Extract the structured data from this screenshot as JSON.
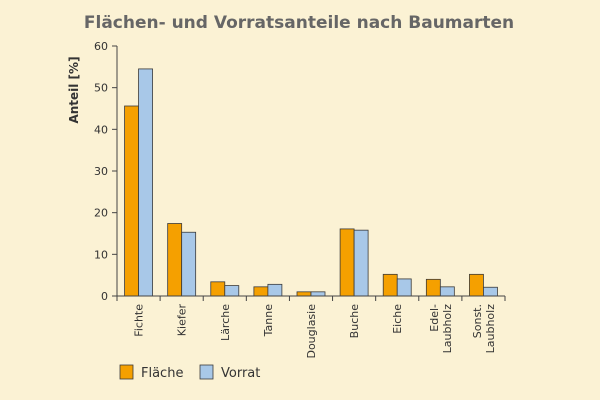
{
  "chart_data": {
    "type": "bar",
    "title": "Flächen- und Vorratsanteile nach Baumarten",
    "xlabel": "",
    "ylabel": "Anteil [%]",
    "ylim": [
      0,
      60
    ],
    "yticks": [
      0,
      10,
      20,
      30,
      40,
      50,
      60
    ],
    "categories": [
      [
        "Fichte"
      ],
      [
        "Kiefer"
      ],
      [
        "Lärche"
      ],
      [
        "Tanne"
      ],
      [
        "Douglasie"
      ],
      [
        "Buche"
      ],
      [
        "Eiche"
      ],
      [
        "Edel-",
        "Laubholz"
      ],
      [
        "Sonst.",
        "Laubholz"
      ]
    ],
    "series": [
      {
        "name": "Fläche",
        "color": "#f5a000",
        "values": [
          45.6,
          17.4,
          3.4,
          2.2,
          1.0,
          16.1,
          5.2,
          4.0,
          5.2
        ]
      },
      {
        "name": "Vorrat",
        "color": "#a8c8e8",
        "values": [
          54.5,
          15.3,
          2.5,
          2.8,
          1.0,
          15.8,
          4.1,
          2.2,
          2.1
        ]
      }
    ],
    "legend": "bottom-left",
    "grid": false
  }
}
